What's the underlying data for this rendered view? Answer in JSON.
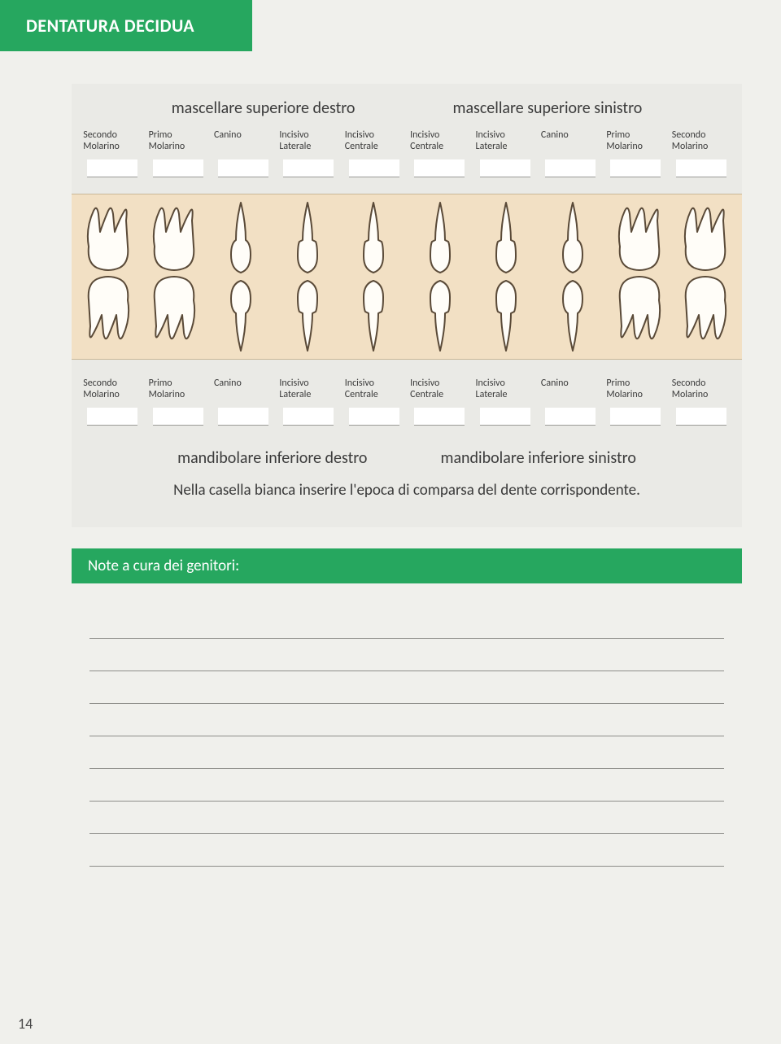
{
  "page_title": "DENTATURA DECIDUA",
  "page_number": "14",
  "colors": {
    "header_green": "#26a75f",
    "page_bg": "#f0f0ec",
    "panel_bg": "#eaeae6",
    "teeth_band_bg": "#f2e0c4",
    "text": "#3b3b3b"
  },
  "upper_arch": {
    "right_label": "mascellare superiore destro",
    "left_label": "mascellare superiore sinistro"
  },
  "lower_arch": {
    "right_label": "mandibolare inferiore destro",
    "left_label": "mandibolare inferiore sinistro"
  },
  "teeth_labels_upper": [
    "Secondo\nMolarino",
    "Primo\nMolarino",
    "Canino",
    "Incisivo\nLaterale",
    "Incisivo\nCentrale",
    "Incisivo\nCentrale",
    "Incisivo\nLaterale",
    "Canino",
    "Primo\nMolarino",
    "Secondo\nMolarino"
  ],
  "teeth_labels_lower": [
    "Secondo\nMolarino",
    "Primo\nMolarino",
    "Canino",
    "Incisivo\nLaterale",
    "Incisivo\nCentrale",
    "Incisivo\nCentrale",
    "Incisivo\nLaterale",
    "Canino",
    "Primo\nMolarino",
    "Secondo\nMolarino"
  ],
  "tooth_types": [
    "molar",
    "molar",
    "canine",
    "incisor",
    "incisor",
    "incisor",
    "incisor",
    "canine",
    "molar",
    "molar"
  ],
  "instruction_text": "Nella casella bianca inserire l'epoca di comparsa del dente corrispondente.",
  "notes_header": "Note a cura dei genitori:",
  "note_line_count": 8
}
